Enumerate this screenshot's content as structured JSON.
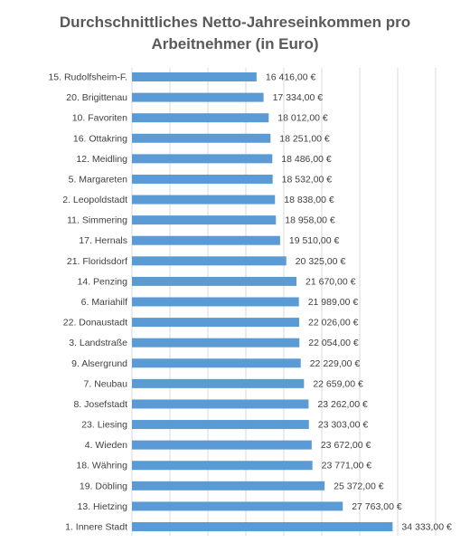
{
  "chart_data": {
    "type": "bar",
    "orientation": "horizontal",
    "title_line1": "Durchschnittliches Netto-Jahreseinkommen pro",
    "title_line2": "Arbeitnehmer (in Euro)",
    "categories": [
      "15. Rudolfsheim-F.",
      "20. Brigittenau",
      "10. Favoriten",
      "16. Ottakring",
      "12. Meidling",
      "5. Margareten",
      "2. Leopoldstadt",
      "11. Simmering",
      "17. Hernals",
      "21. Floridsdorf",
      "14. Penzing",
      "6. Mariahilf",
      "22. Donaustadt",
      "3. Landstraße",
      "9. Alsergrund",
      "7. Neubau",
      "8. Josefstadt",
      "23. Liesing",
      "4. Wieden",
      "18. Währing",
      "19. Döbling",
      "13. Hietzing",
      "1. Innere Stadt"
    ],
    "values": [
      16416,
      17334,
      18012,
      18251,
      18486,
      18532,
      18838,
      18958,
      19510,
      20325,
      21670,
      21989,
      22026,
      22054,
      22229,
      22659,
      23262,
      23303,
      23672,
      23771,
      25372,
      27763,
      34333
    ],
    "value_labels": [
      "16 416,00 €",
      "17 334,00 €",
      "18 012,00 €",
      "18 251,00 €",
      "18 486,00 €",
      "18 532,00 €",
      "18 838,00 €",
      "18 958,00 €",
      "19 510,00 €",
      "20 325,00 €",
      "21 670,00 €",
      "21 989,00 €",
      "22 026,00 €",
      "22 054,00 €",
      "22 229,00 €",
      "22 659,00 €",
      "23 262,00 €",
      "23 303,00 €",
      "23 672,00 €",
      "23 771,00 €",
      "25 372,00 €",
      "27 763,00 €",
      "34 333,00 €"
    ],
    "xlim": [
      0,
      40000
    ],
    "grid": "vertical",
    "bar_color": "#5B9BD5",
    "grid_color": "#d9d9d9"
  }
}
